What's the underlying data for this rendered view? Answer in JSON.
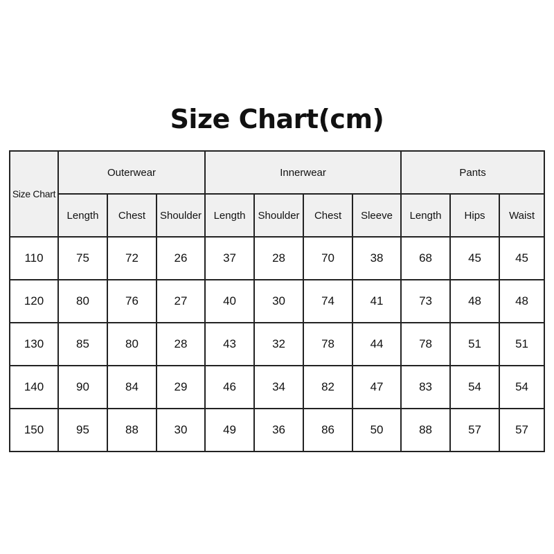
{
  "title": "Size Chart(cm)",
  "chart_data": {
    "type": "table",
    "title": "Size Chart(cm)",
    "corner_label": "Size Chart",
    "groups": [
      {
        "name": "Outerwear",
        "columns": [
          "Length",
          "Chest",
          "Shoulder"
        ]
      },
      {
        "name": "Innerwear",
        "columns": [
          "Length",
          "Shoulder",
          "Chest",
          "Sleeve"
        ]
      },
      {
        "name": "Pants",
        "columns": [
          "Length",
          "Hips",
          "Waist"
        ]
      }
    ],
    "rows": [
      [
        "110",
        "75",
        "72",
        "26",
        "37",
        "28",
        "70",
        "38",
        "68",
        "45",
        "45"
      ],
      [
        "120",
        "80",
        "76",
        "27",
        "40",
        "30",
        "74",
        "41",
        "73",
        "48",
        "48"
      ],
      [
        "130",
        "85",
        "80",
        "28",
        "43",
        "32",
        "78",
        "44",
        "78",
        "51",
        "51"
      ],
      [
        "140",
        "90",
        "84",
        "29",
        "46",
        "34",
        "82",
        "47",
        "83",
        "54",
        "54"
      ],
      [
        "150",
        "95",
        "88",
        "30",
        "49",
        "36",
        "86",
        "50",
        "88",
        "57",
        "57"
      ]
    ],
    "header_bg": "#f0f0f0",
    "border_color": "#222222"
  }
}
